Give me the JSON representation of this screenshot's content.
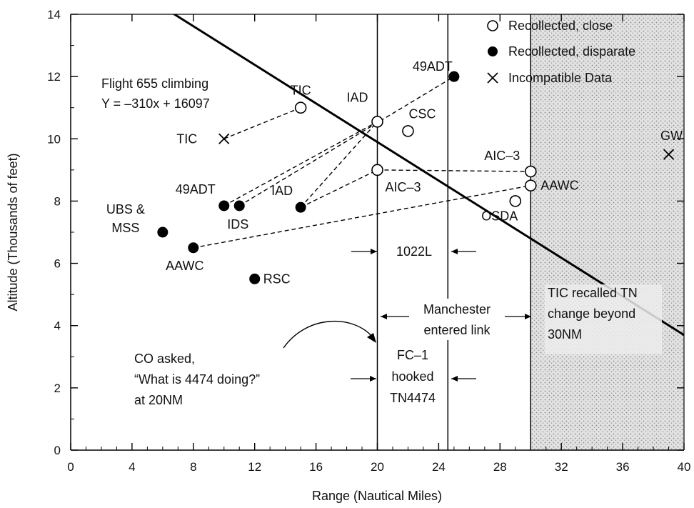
{
  "chart_data": {
    "type": "scatter",
    "xlabel": "Range (Nautical Miles)",
    "ylabel": "Altitude (Thousands of feet)",
    "xlim": [
      0,
      40
    ],
    "ylim": [
      0,
      14
    ],
    "x_ticks": [
      "0",
      "4",
      "8",
      "12",
      "16",
      "20",
      "24",
      "28",
      "32",
      "36",
      "40"
    ],
    "y_ticks": [
      "0",
      "2",
      "4",
      "6",
      "8",
      "10",
      "12",
      "14"
    ],
    "grid": false,
    "legend_position": "top-right",
    "legend": [
      {
        "label": "Recollected, close",
        "marker": "open-circle"
      },
      {
        "label": "Recollected, disparate",
        "marker": "filled-circle"
      },
      {
        "label": "Incompatible Data",
        "marker": "x"
      }
    ],
    "flight_line": {
      "label_line1": "Flight 655 climbing",
      "label_line2": "Y = –310x + 16097",
      "slope": -310,
      "intercept": 16097
    },
    "series": [
      {
        "name": "Recollected, close",
        "marker": "open-circle",
        "points": [
          {
            "label": "TIC",
            "x": 15,
            "y": 11.0
          },
          {
            "label": "IAD",
            "x": 20,
            "y": 10.55
          },
          {
            "label": "CSC",
            "x": 22,
            "y": 10.25
          },
          {
            "label": "AIC–3",
            "x": 20,
            "y": 9.0
          },
          {
            "label": "AIC–3",
            "x": 30,
            "y": 8.95
          },
          {
            "label": "AAWC",
            "x": 30,
            "y": 8.5
          },
          {
            "label": "OSDA",
            "x": 29,
            "y": 8.0
          }
        ]
      },
      {
        "name": "Recollected, disparate",
        "marker": "filled-circle",
        "points": [
          {
            "label": "49ADT",
            "x": 25,
            "y": 12.0
          },
          {
            "label": "49ADT",
            "x": 10,
            "y": 7.85
          },
          {
            "label": "IDS",
            "x": 11,
            "y": 7.85
          },
          {
            "label": "IAD",
            "x": 15,
            "y": 7.8
          },
          {
            "label": "UBS &",
            "label2": "MSS",
            "x": 6,
            "y": 7.0
          },
          {
            "label": "AAWC",
            "x": 8,
            "y": 6.5
          },
          {
            "label": "RSC",
            "x": 12,
            "y": 5.5
          }
        ]
      },
      {
        "name": "Incompatible Data",
        "marker": "x",
        "points": [
          {
            "label": "TIC",
            "x": 10,
            "y": 10.0
          },
          {
            "label": "GW",
            "x": 39,
            "y": 9.5
          }
        ]
      }
    ],
    "dashed_links": [
      {
        "from": [
          10,
          10.0
        ],
        "to": [
          15,
          11.0
        ]
      },
      {
        "from": [
          10,
          7.85
        ],
        "to": [
          20,
          10.55
        ]
      },
      {
        "from": [
          15,
          7.8
        ],
        "to": [
          20,
          10.55
        ]
      },
      {
        "from": [
          15,
          7.8
        ],
        "to": [
          20,
          9.0
        ]
      },
      {
        "from": [
          8,
          6.5
        ],
        "to": [
          30,
          8.5
        ]
      },
      {
        "from": [
          11,
          7.85
        ],
        "to": [
          25,
          12.0
        ]
      },
      {
        "from": [
          20,
          9.0
        ],
        "to": [
          30,
          8.95
        ]
      }
    ],
    "vertical_lines": [
      20,
      24.6,
      30
    ],
    "shaded_region": {
      "x_from": 30,
      "x_to": 40
    },
    "annotations": {
      "track_1022l": "1022L",
      "manchester_1": "Manchester",
      "manchester_2": "entered link",
      "fc1_1": "FC–1",
      "fc1_2": "hooked",
      "fc1_3": "TN4474",
      "tic_tn_1": "TIC recalled TN",
      "tic_tn_2": "change beyond",
      "tic_tn_3": "30NM",
      "co_1": "CO asked,",
      "co_2": "“What is 4474 doing?”",
      "co_3": "at 20NM"
    }
  }
}
